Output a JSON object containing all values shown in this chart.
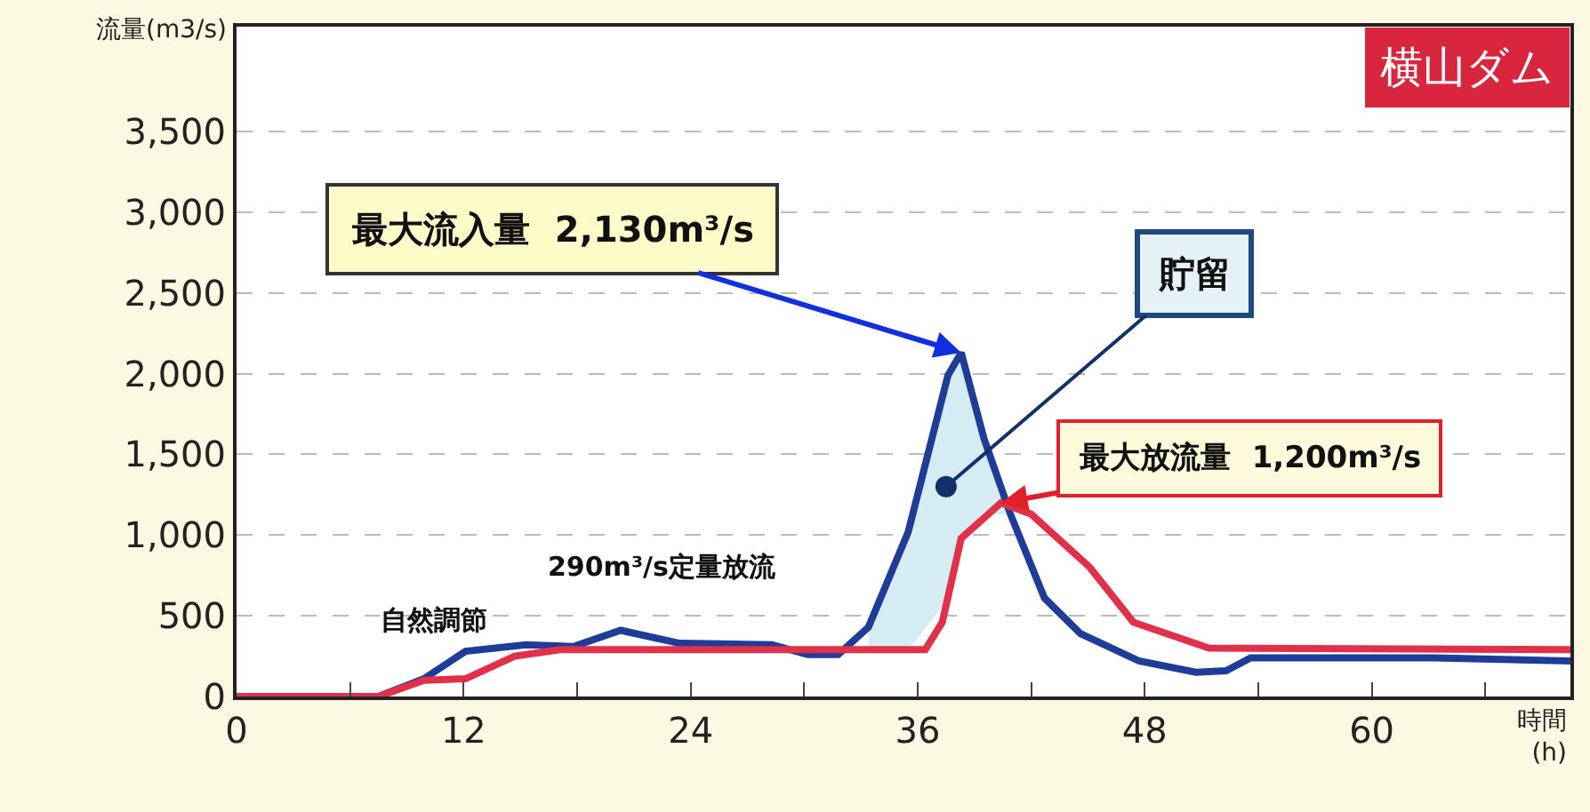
{
  "chart_data": {
    "type": "line",
    "title": "横山ダム",
    "xlabel": "時間\n(h)",
    "ylabel": "流量(m3/s)",
    "xlim": [
      0,
      70.5
    ],
    "ylim": [
      0,
      4150
    ],
    "xticks": [
      0,
      {
        "value": 6,
        "label": null
      },
      12,
      {
        "value": 18,
        "label": null
      },
      24,
      {
        "value": 30,
        "label": null
      },
      36,
      {
        "value": 42,
        "label": null
      },
      48,
      {
        "value": 54,
        "label": null
      },
      60,
      {
        "value": 66,
        "label": null
      }
    ],
    "yticks": [
      0,
      500,
      {
        "value": 1000,
        "label": "1,000"
      },
      {
        "value": 1500,
        "label": "1,500"
      },
      {
        "value": 2000,
        "label": "2,000"
      },
      {
        "value": 2500,
        "label": "2,500"
      },
      {
        "value": 3000,
        "label": "3,000"
      },
      {
        "value": 3500,
        "label": "3,500"
      }
    ],
    "grid": "y",
    "marker": "none",
    "line_style": "solid",
    "series": [
      {
        "color": "#1f3c99",
        "x": [
          0,
          7.5,
          9.9,
          12.1,
          15.3,
          17.8,
          20.3,
          23.4,
          28.3,
          30.2,
          31.8,
          33.4,
          35.5,
          37.6,
          38.3,
          39.5,
          40.9,
          42.7,
          44.6,
          47.7,
          50.7,
          52.3,
          53.6,
          63.3,
          70.5
        ],
        "values": [
          0,
          0,
          110,
          280,
          320,
          310,
          410,
          330,
          320,
          260,
          260,
          430,
          1020,
          1990,
          2130,
          1600,
          1130,
          610,
          390,
          220,
          150,
          160,
          240,
          240,
          220
        ],
        "lower": [
          null,
          null,
          null,
          null,
          null,
          null,
          null,
          null,
          null,
          null,
          null,
          290,
          290,
          600,
          980,
          1130,
          1130,
          null,
          null,
          null,
          null,
          null,
          null,
          null,
          null
        ],
        "upper": [
          null,
          null,
          null,
          null,
          null,
          null,
          null,
          null,
          null,
          null,
          null,
          430,
          1020,
          1990,
          2130,
          1600,
          1130,
          null,
          null,
          null,
          null,
          null,
          null,
          null,
          null
        ]
      },
      {
        "color": "#e0304a",
        "x": [
          0,
          7.5,
          9.9,
          12.1,
          14.7,
          17.1,
          36.4,
          37.3,
          38.3,
          40.4,
          42.0,
          45.1,
          47.4,
          51.4,
          70.5
        ],
        "values": [
          0,
          0,
          100,
          110,
          250,
          290,
          290,
          460,
          980,
          1200,
          1130,
          800,
          460,
          300,
          290
        ]
      }
    ],
    "annotations": [
      {
        "text": "最大流入量  2,130m³/s",
        "x": 38.3,
        "y": 2130
      },
      {
        "text": "最大放流量  1,200m³/s",
        "x": 40.4,
        "y": 1200
      },
      {
        "text": "貯留",
        "x": 37.5,
        "y": 1300
      },
      "290m³/s定量放流",
      "自然調節"
    ]
  }
}
